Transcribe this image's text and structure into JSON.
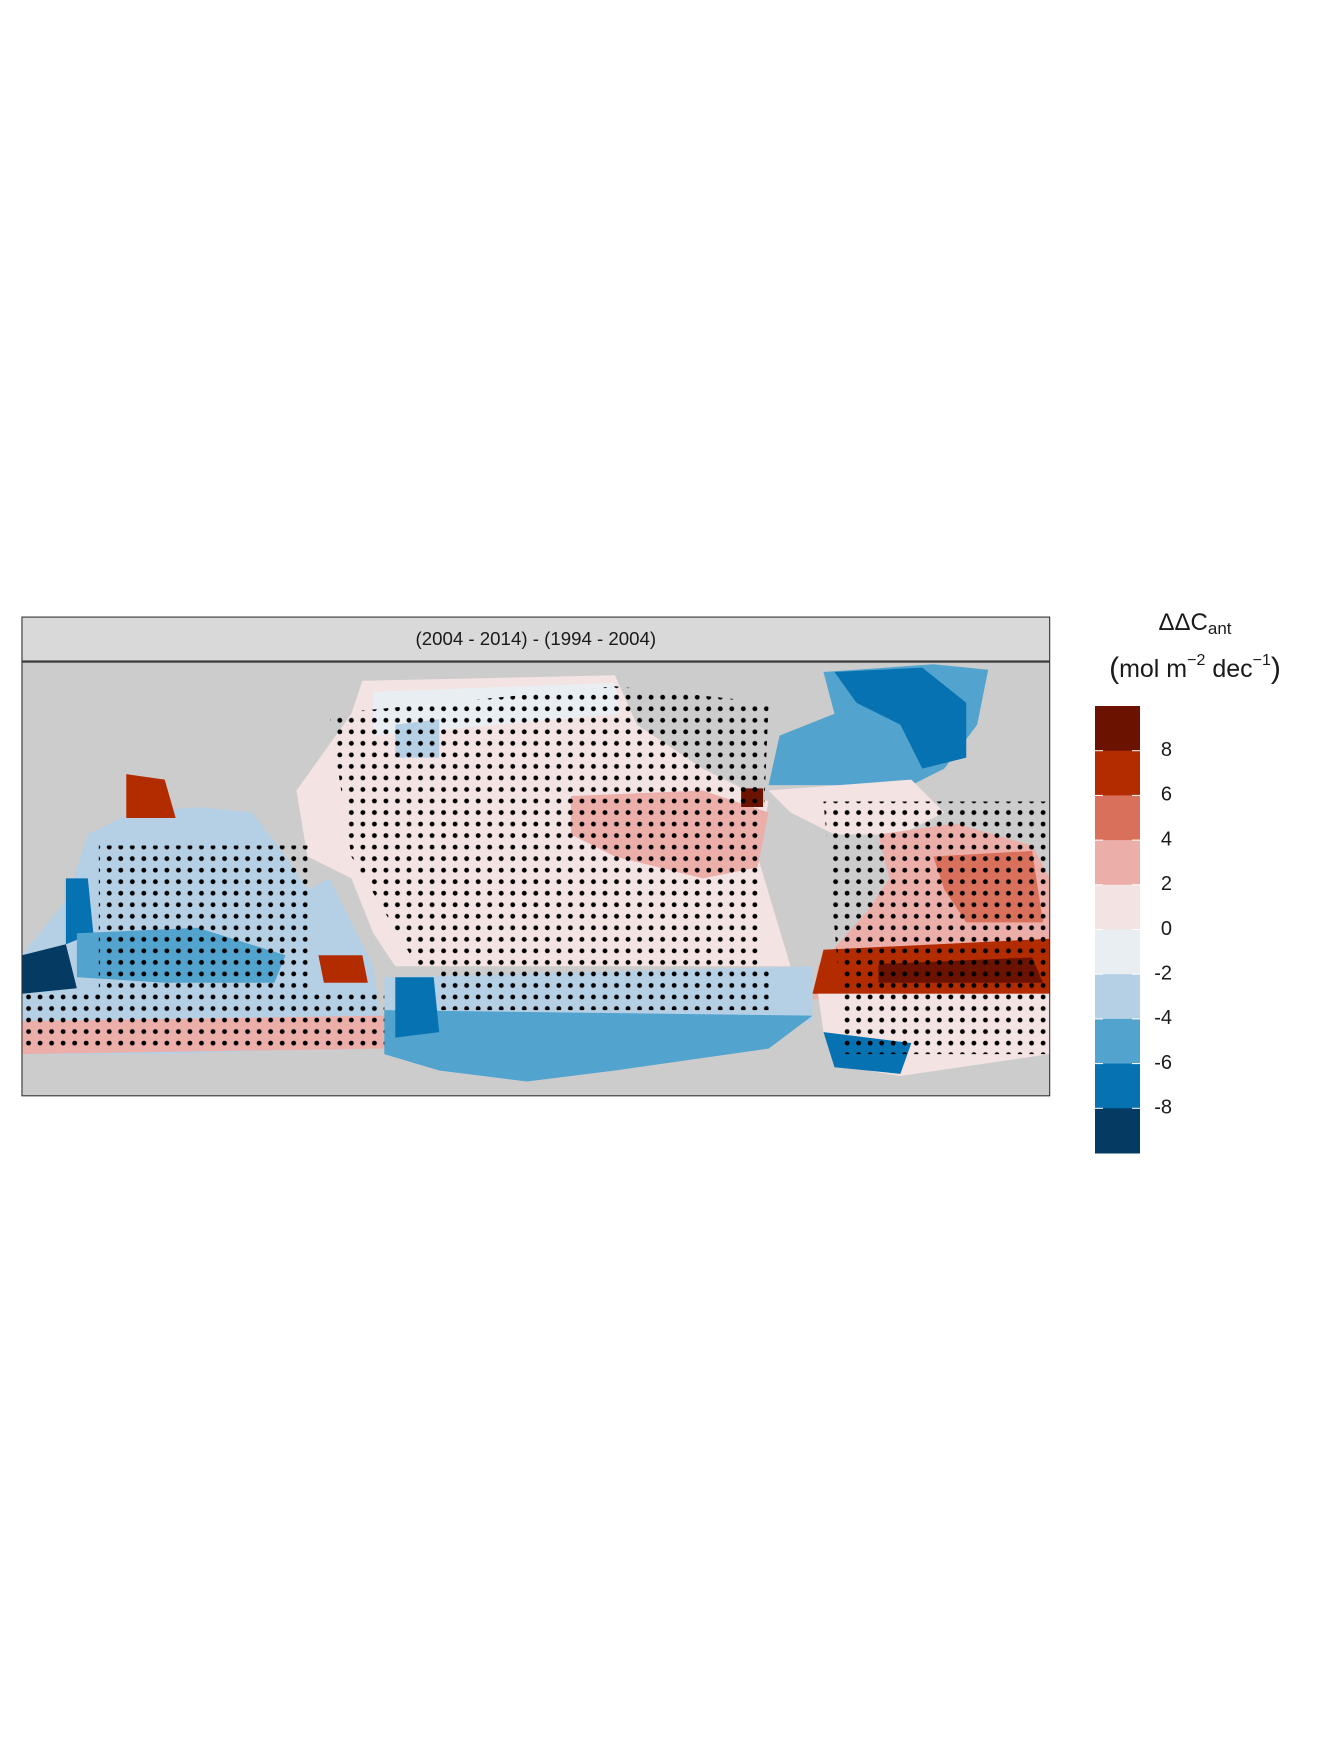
{
  "chart_data": {
    "type": "map",
    "title": "(2004 - 2014) - (1994 - 2004)",
    "legend_title": {
      "symbol": "ΔΔC",
      "subscript": "ant"
    },
    "legend_units": {
      "open": "(",
      "unit1": "mol m",
      "exp1": "−2",
      "unit2": " dec",
      "exp2": "−1",
      "close": ")"
    },
    "colorbar": {
      "clim": [
        -10,
        10
      ],
      "ticks": [
        8,
        6,
        4,
        2,
        0,
        -2,
        -4,
        -6,
        -8
      ],
      "colors": [
        "#6b1200",
        "#b22c00",
        "#d9705c",
        "#ecaea8",
        "#f3e3e3",
        "#e9eef3",
        "#b5d0e5",
        "#52a3cd",
        "#0672b1",
        "#053a62"
      ]
    },
    "land_color": "#cccccc",
    "strip_color": "#d9d9d9",
    "stipple": true
  }
}
